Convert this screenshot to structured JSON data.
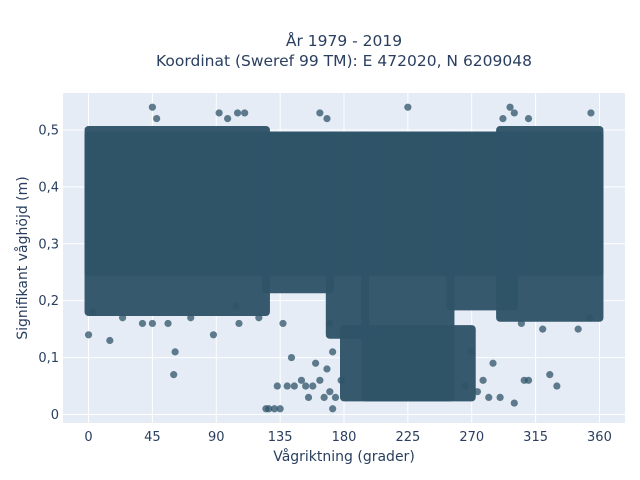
{
  "chart_data": {
    "type": "scatter",
    "title_line1": "År 1979 - 2019",
    "title_line2": "Koordinat (Sweref 99 TM): E 472020, N 6209048",
    "xlabel": "Vågriktning (grader)",
    "ylabel": "Signifikant våghöjd (m)",
    "xlim": [
      -18,
      378
    ],
    "ylim": [
      -0.015,
      0.565
    ],
    "x_ticks": [
      0,
      45,
      90,
      135,
      180,
      225,
      270,
      315,
      360
    ],
    "x_tick_labels": [
      "0",
      "45",
      "90",
      "135",
      "180",
      "225",
      "270",
      "315",
      "360"
    ],
    "y_ticks": [
      0,
      0.1,
      0.2,
      0.3,
      0.4,
      0.5
    ],
    "y_tick_labels": [
      "0",
      "0,1",
      "0,2",
      "0,3",
      "0,4",
      "0,5"
    ],
    "grid": true,
    "marker_color": "#2f5468",
    "background_color": "#e5ecf6",
    "series": [
      {
        "dense_regions": [
          {
            "x": [
              0,
              360
            ],
            "y": [
              0.25,
              0.49
            ]
          },
          {
            "x": [
              0,
              125
            ],
            "y": [
              0.18,
              0.5
            ]
          },
          {
            "x": [
              125,
              170
            ],
            "y": [
              0.22,
              0.49
            ]
          },
          {
            "x": [
              170,
              195
            ],
            "y": [
              0.14,
              0.49
            ]
          },
          {
            "x": [
              195,
              255
            ],
            "y": [
              0.03,
              0.49
            ]
          },
          {
            "x": [
              180,
              270
            ],
            "y": [
              0.03,
              0.15
            ]
          },
          {
            "x": [
              255,
              300
            ],
            "y": [
              0.19,
              0.49
            ]
          },
          {
            "x": [
              290,
              360
            ],
            "y": [
              0.17,
              0.5
            ]
          }
        ],
        "points": [
          [
            0,
            0.14
          ],
          [
            3,
            0.18
          ],
          [
            15,
            0.13
          ],
          [
            24,
            0.17
          ],
          [
            38,
            0.16
          ],
          [
            45,
            0.16
          ],
          [
            56,
            0.16
          ],
          [
            60,
            0.07
          ],
          [
            61,
            0.11
          ],
          [
            72,
            0.17
          ],
          [
            88,
            0.14
          ],
          [
            104,
            0.19
          ],
          [
            106,
            0.16
          ],
          [
            120,
            0.17
          ],
          [
            125,
            0.01
          ],
          [
            127,
            0.01
          ],
          [
            131,
            0.01
          ],
          [
            133,
            0.05
          ],
          [
            135,
            0.01
          ],
          [
            137,
            0.16
          ],
          [
            140,
            0.05
          ],
          [
            143,
            0.1
          ],
          [
            145,
            0.05
          ],
          [
            150,
            0.06
          ],
          [
            153,
            0.05
          ],
          [
            155,
            0.03
          ],
          [
            158,
            0.05
          ],
          [
            160,
            0.09
          ],
          [
            163,
            0.06
          ],
          [
            166,
            0.03
          ],
          [
            168,
            0.08
          ],
          [
            170,
            0.04
          ],
          [
            172,
            0.01
          ],
          [
            174,
            0.03
          ],
          [
            170,
            0.16
          ],
          [
            172,
            0.11
          ],
          [
            178,
            0.06
          ],
          [
            265,
            0.05
          ],
          [
            270,
            0.11
          ],
          [
            274,
            0.04
          ],
          [
            278,
            0.06
          ],
          [
            282,
            0.03
          ],
          [
            285,
            0.09
          ],
          [
            290,
            0.03
          ],
          [
            300,
            0.02
          ],
          [
            307,
            0.06
          ],
          [
            310,
            0.06
          ],
          [
            325,
            0.07
          ],
          [
            330,
            0.05
          ],
          [
            305,
            0.16
          ],
          [
            320,
            0.15
          ],
          [
            345,
            0.15
          ],
          [
            353,
            0.17
          ],
          [
            45,
            0.54
          ],
          [
            48,
            0.52
          ],
          [
            92,
            0.53
          ],
          [
            98,
            0.52
          ],
          [
            105,
            0.53
          ],
          [
            110,
            0.53
          ],
          [
            163,
            0.53
          ],
          [
            168,
            0.52
          ],
          [
            225,
            0.54
          ],
          [
            292,
            0.52
          ],
          [
            297,
            0.54
          ],
          [
            300,
            0.53
          ],
          [
            310,
            0.52
          ],
          [
            354,
            0.53
          ]
        ]
      }
    ]
  }
}
